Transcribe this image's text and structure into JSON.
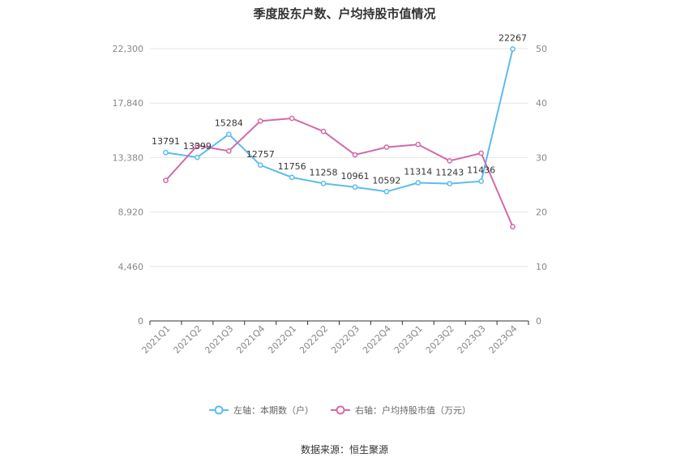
{
  "title": "季度股东户数、户均持股市值情况",
  "source": "数据来源：恒生聚源",
  "colors": {
    "left_series": "#5bbcee",
    "right_series": "#d26aa8",
    "grid": "#e6e6e6",
    "axis": "#333333"
  },
  "chart_data": {
    "type": "line",
    "categories": [
      "2021Q1",
      "2021Q2",
      "2021Q3",
      "2021Q4",
      "2022Q1",
      "2022Q2",
      "2022Q3",
      "2022Q4",
      "2023Q1",
      "2023Q2",
      "2023Q3",
      "2023Q4"
    ],
    "series": [
      {
        "name": "左轴：本期数（户）",
        "axis": "left",
        "values": [
          13791,
          13399,
          15284,
          12757,
          11756,
          11258,
          10961,
          10592,
          11314,
          11243,
          11436,
          22267
        ],
        "labels": [
          "13791",
          "13399",
          "15284",
          "12757",
          "11756",
          "11258",
          "10961",
          "10592",
          "11314",
          "11243",
          "11436",
          "22267"
        ]
      },
      {
        "name": "右轴：户均持股市值（万元）",
        "axis": "right",
        "values": [
          25.8,
          32.2,
          31.2,
          36.7,
          37.2,
          34.8,
          30.5,
          31.9,
          32.4,
          29.4,
          30.8,
          17.3
        ]
      }
    ],
    "left_axis": {
      "min": 0,
      "max": 22300,
      "ticks": [
        0,
        4460,
        8920,
        13380,
        17840,
        22300
      ],
      "tick_labels": [
        "0",
        "4,460",
        "8,920",
        "13,380",
        "17,840",
        "22,300"
      ]
    },
    "right_axis": {
      "min": 0,
      "max": 50,
      "ticks": [
        0,
        10,
        20,
        30,
        40,
        50
      ],
      "tick_labels": [
        "0",
        "10",
        "20",
        "30",
        "40",
        "50"
      ]
    },
    "grid": true,
    "legend_position": "bottom"
  }
}
